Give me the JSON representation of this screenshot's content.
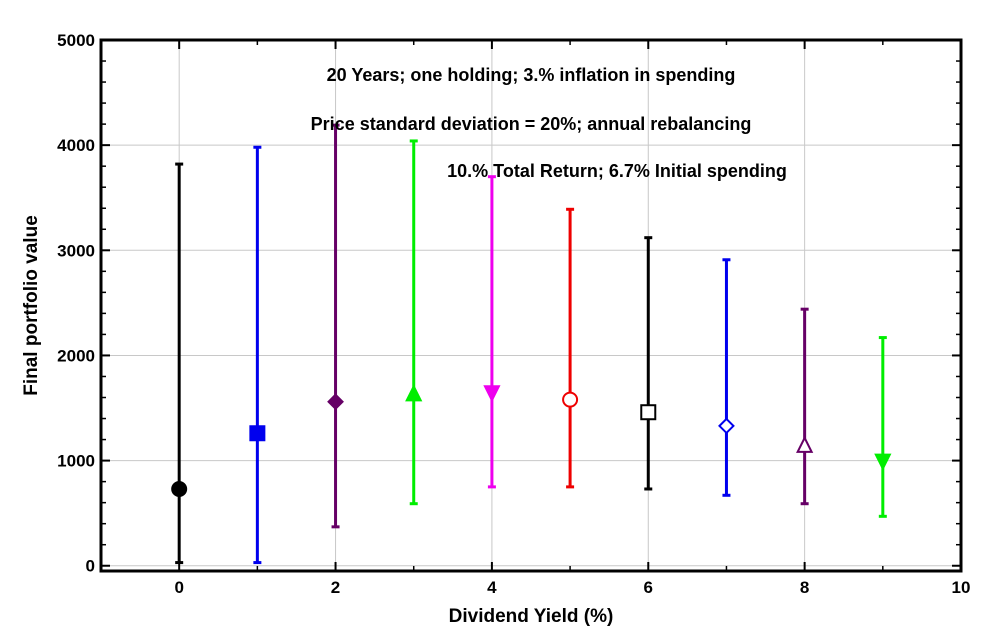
{
  "chart_data": {
    "type": "scatter",
    "xlabel": "Dividend Yield (%)",
    "ylabel": "Final portfolio value",
    "xlim": [
      -1,
      10
    ],
    "ylim": [
      -50,
      5000
    ],
    "xticks": [
      0,
      2,
      4,
      6,
      8,
      10
    ],
    "yticks": [
      0,
      1000,
      2000,
      3000,
      4000,
      5000
    ],
    "grid": true,
    "annotations": [
      "20 Years; one holding; 3.% inflation in spending",
      "Price standard deviation = 20%; annual rebalancing",
      "10.% Total Return; 6.7% Initial spending"
    ],
    "points": [
      {
        "x": 0,
        "y": 730,
        "low": 30,
        "high": 3820,
        "color": "#000000",
        "marker": "circle-filled"
      },
      {
        "x": 1,
        "y": 1260,
        "low": 30,
        "high": 3980,
        "color": "#0000ee",
        "marker": "square-filled"
      },
      {
        "x": 2,
        "y": 1560,
        "low": 370,
        "high": 4190,
        "color": "#660066",
        "marker": "diamond-filled"
      },
      {
        "x": 3,
        "y": 1630,
        "low": 590,
        "high": 4040,
        "color": "#00ee00",
        "marker": "triangle-up-filled"
      },
      {
        "x": 4,
        "y": 1650,
        "low": 750,
        "high": 3700,
        "color": "#ee00ee",
        "marker": "triangle-down-filled"
      },
      {
        "x": 5,
        "y": 1580,
        "low": 750,
        "high": 3390,
        "color": "#ee0000",
        "marker": "circle-open"
      },
      {
        "x": 6,
        "y": 1460,
        "low": 730,
        "high": 3120,
        "color": "#000000",
        "marker": "square-open"
      },
      {
        "x": 7,
        "y": 1330,
        "low": 670,
        "high": 2910,
        "color": "#0000ee",
        "marker": "diamond-open"
      },
      {
        "x": 8,
        "y": 1140,
        "low": 590,
        "high": 2440,
        "color": "#660066",
        "marker": "triangle-up-open"
      },
      {
        "x": 9,
        "y": 1000,
        "low": 470,
        "high": 2170,
        "color": "#00ee00",
        "marker": "triangle-down-filled"
      }
    ]
  }
}
